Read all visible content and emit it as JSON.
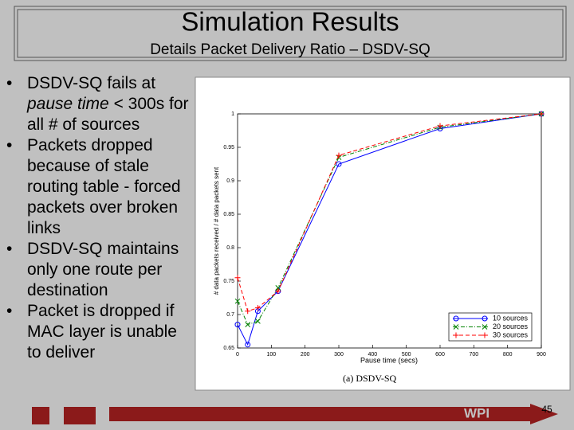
{
  "header": {
    "title": "Simulation Results",
    "subtitle": "Details Packet Delivery Ratio – DSDV-SQ"
  },
  "bullets": [
    [
      "DSDV-SQ fails at ",
      "pause time",
      " < 300s for all # of sources"
    ],
    [
      "Packets dropped because of stale routing table - forced packets over broken links"
    ],
    [
      "DSDV-SQ maintains only one route per destination"
    ],
    [
      "Packet is dropped if MAC layer is unable to deliver"
    ]
  ],
  "chart_data": {
    "type": "line",
    "caption": "(a) DSDV-SQ",
    "xlabel": "Pause time (secs)",
    "ylabel": "# data packets received / # data packets sent",
    "x": [
      0,
      30,
      60,
      120,
      300,
      600,
      900
    ],
    "series": [
      {
        "name": "10 sources",
        "color": "#0000ff",
        "style": "solid",
        "marker": "circle",
        "values": [
          0.685,
          0.655,
          0.705,
          0.735,
          0.925,
          0.978,
          1.0
        ]
      },
      {
        "name": "20 sources",
        "color": "#008000",
        "style": "dashdot",
        "marker": "x",
        "values": [
          0.72,
          0.685,
          0.69,
          0.74,
          0.935,
          0.98,
          1.0
        ]
      },
      {
        "name": "30 sources",
        "color": "#ff0000",
        "style": "dashed",
        "marker": "plus",
        "values": [
          0.755,
          0.705,
          0.71,
          0.735,
          0.938,
          0.982,
          1.0
        ]
      }
    ],
    "xlim": [
      0,
      900
    ],
    "xticks": [
      0,
      100,
      200,
      300,
      400,
      500,
      600,
      700,
      800,
      900
    ],
    "ylim": [
      0.65,
      1
    ],
    "yticks": [
      0.65,
      0.7,
      0.75,
      0.8,
      0.85,
      0.9,
      0.95,
      1
    ],
    "legend": "lower right"
  },
  "footer": {
    "logo": "WPI",
    "page": "45"
  }
}
